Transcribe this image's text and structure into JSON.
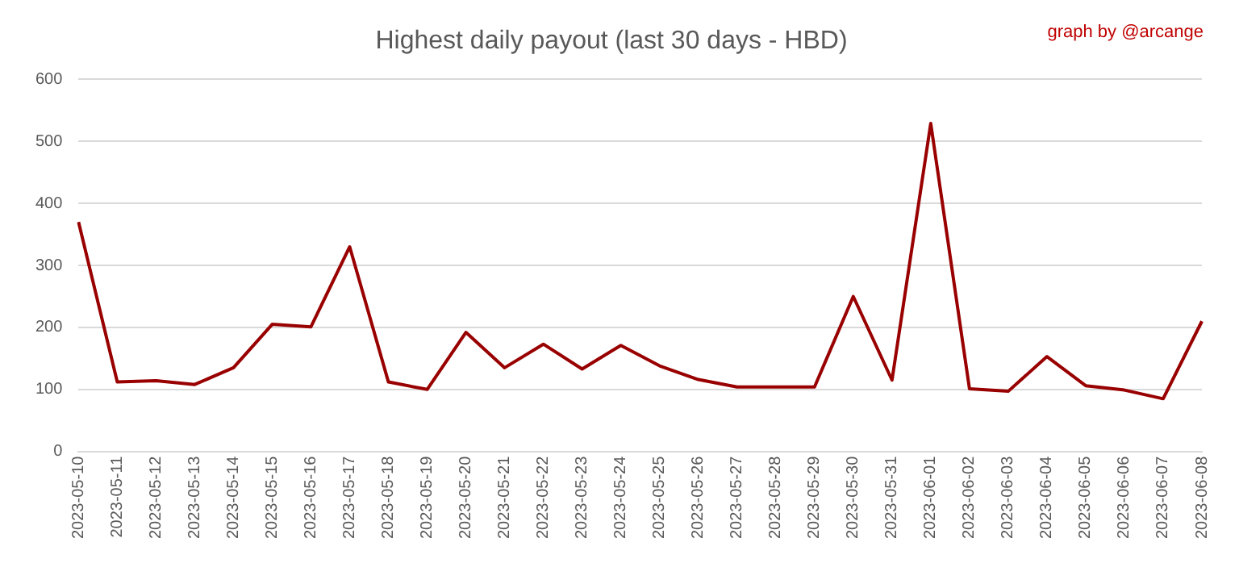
{
  "chart_data": {
    "type": "line",
    "title": "Highest daily payout (last 30 days - HBD)",
    "annotations": [
      "graph by @arcange"
    ],
    "categories": [
      "2023-05-10",
      "2023-05-11",
      "2023-05-12",
      "2023-05-13",
      "2023-05-14",
      "2023-05-15",
      "2023-05-16",
      "2023-05-17",
      "2023-05-18",
      "2023-05-19",
      "2023-05-20",
      "2023-05-21",
      "2023-05-22",
      "2023-05-23",
      "2023-05-24",
      "2023-05-25",
      "2023-05-26",
      "2023-05-27",
      "2023-05-28",
      "2023-05-29",
      "2023-05-30",
      "2023-05-31",
      "2023-06-01",
      "2023-06-02",
      "2023-06-03",
      "2023-06-04",
      "2023-06-05",
      "2023-06-06",
      "2023-06-07",
      "2023-06-08"
    ],
    "series": [
      {
        "color": "#990000",
        "values": [
          370,
          112,
          114,
          108,
          135,
          205,
          201,
          330,
          112,
          100,
          192,
          135,
          173,
          133,
          171,
          138,
          116,
          104,
          104,
          104,
          250,
          115,
          529,
          101,
          97,
          153,
          106,
          99,
          85,
          210
        ]
      }
    ],
    "ylim": [
      0,
      600
    ],
    "yticks": [
      0,
      100,
      200,
      300,
      400,
      500,
      600
    ],
    "grid": "y",
    "legend": false,
    "marker": "none",
    "line_style": "solid"
  }
}
